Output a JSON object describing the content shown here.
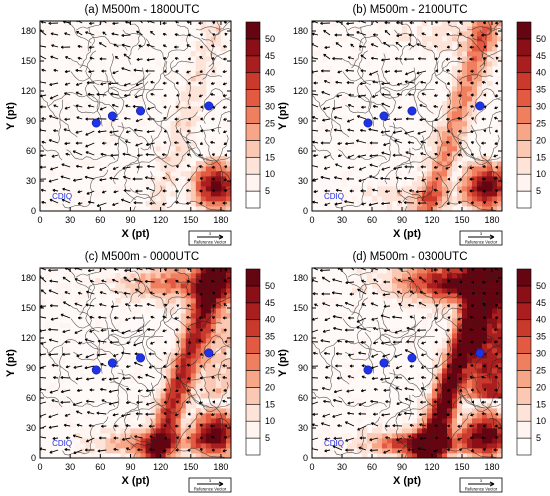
{
  "figure": {
    "panels": [
      {
        "title": "(a)  M500m - 1800UTC",
        "intensity": 0.45,
        "vec_label": "Reference Vector",
        "vec_value": "3"
      },
      {
        "title": "(b)  M500m - 2100UTC",
        "intensity": 0.62,
        "vec_label": "Reference Vector",
        "vec_value": "3"
      },
      {
        "title": "(c)  M500m - 0000UTC",
        "intensity": 0.8,
        "vec_label": "Reference Vector",
        "vec_value": "3"
      },
      {
        "title": "(d)  M500m - 0300UTC",
        "intensity": 1.0,
        "vec_label": "Reference Vector",
        "vec_value": "3"
      }
    ],
    "site_label": "CDIQ",
    "colors": {
      "site_marker": "#1f33e6",
      "contour": "#222222",
      "colorbar": [
        "#fff4ef",
        "#fde3d8",
        "#fbc9b3",
        "#f7a688",
        "#f07f60",
        "#e15a41",
        "#c93a2c",
        "#a91f1f",
        "#8a0f17",
        "#650511"
      ]
    }
  },
  "chart_data": [
    {
      "type": "heatmap",
      "title": "(a)  M500m - 1800UTC",
      "xlabel": "X (pt)",
      "ylabel": "Y (pt)",
      "xlim": [
        0,
        190
      ],
      "ylim": [
        0,
        190
      ],
      "xticks": [
        0,
        30,
        60,
        90,
        120,
        150,
        180
      ],
      "yticks": [
        0,
        30,
        60,
        90,
        120,
        150,
        180
      ],
      "colorbar_ticks": [
        5,
        10,
        15,
        20,
        25,
        30,
        35,
        40,
        45,
        50
      ],
      "sites": [
        {
          "x": 56,
          "y": 88
        },
        {
          "x": 72,
          "y": 95
        },
        {
          "x": 100,
          "y": 100
        },
        {
          "x": 168,
          "y": 105
        }
      ]
    },
    {
      "type": "heatmap",
      "title": "(b)  M500m - 2100UTC",
      "xlabel": "X (pt)",
      "ylabel": "Y (pt)",
      "xlim": [
        0,
        190
      ],
      "ylim": [
        0,
        190
      ],
      "xticks": [
        0,
        30,
        60,
        90,
        120,
        150,
        180
      ],
      "yticks": [
        0,
        30,
        60,
        90,
        120,
        150,
        180
      ],
      "colorbar_ticks": [
        5,
        10,
        15,
        20,
        25,
        30,
        35,
        40,
        45,
        50
      ],
      "sites": [
        {
          "x": 56,
          "y": 88
        },
        {
          "x": 72,
          "y": 95
        },
        {
          "x": 100,
          "y": 100
        },
        {
          "x": 168,
          "y": 105
        }
      ]
    },
    {
      "type": "heatmap",
      "title": "(c)  M500m - 0000UTC",
      "xlabel": "X (pt)",
      "ylabel": "Y (pt)",
      "xlim": [
        0,
        190
      ],
      "ylim": [
        0,
        190
      ],
      "xticks": [
        0,
        30,
        60,
        90,
        120,
        150,
        180
      ],
      "yticks": [
        0,
        30,
        60,
        90,
        120,
        150,
        180
      ],
      "colorbar_ticks": [
        5,
        10,
        15,
        20,
        25,
        30,
        35,
        40,
        45,
        50
      ],
      "sites": [
        {
          "x": 56,
          "y": 88
        },
        {
          "x": 72,
          "y": 95
        },
        {
          "x": 100,
          "y": 100
        },
        {
          "x": 168,
          "y": 105
        }
      ]
    },
    {
      "type": "heatmap",
      "title": "(d)  M500m - 0300UTC",
      "xlabel": "X (pt)",
      "ylabel": "Y (pt)",
      "xlim": [
        0,
        190
      ],
      "ylim": [
        0,
        190
      ],
      "xticks": [
        0,
        30,
        60,
        90,
        120,
        150,
        180
      ],
      "yticks": [
        0,
        30,
        60,
        90,
        120,
        150,
        180
      ],
      "colorbar_ticks": [
        5,
        10,
        15,
        20,
        25,
        30,
        35,
        40,
        45,
        50
      ],
      "sites": [
        {
          "x": 56,
          "y": 88
        },
        {
          "x": 72,
          "y": 95
        },
        {
          "x": 100,
          "y": 100
        },
        {
          "x": 168,
          "y": 105
        }
      ]
    }
  ]
}
